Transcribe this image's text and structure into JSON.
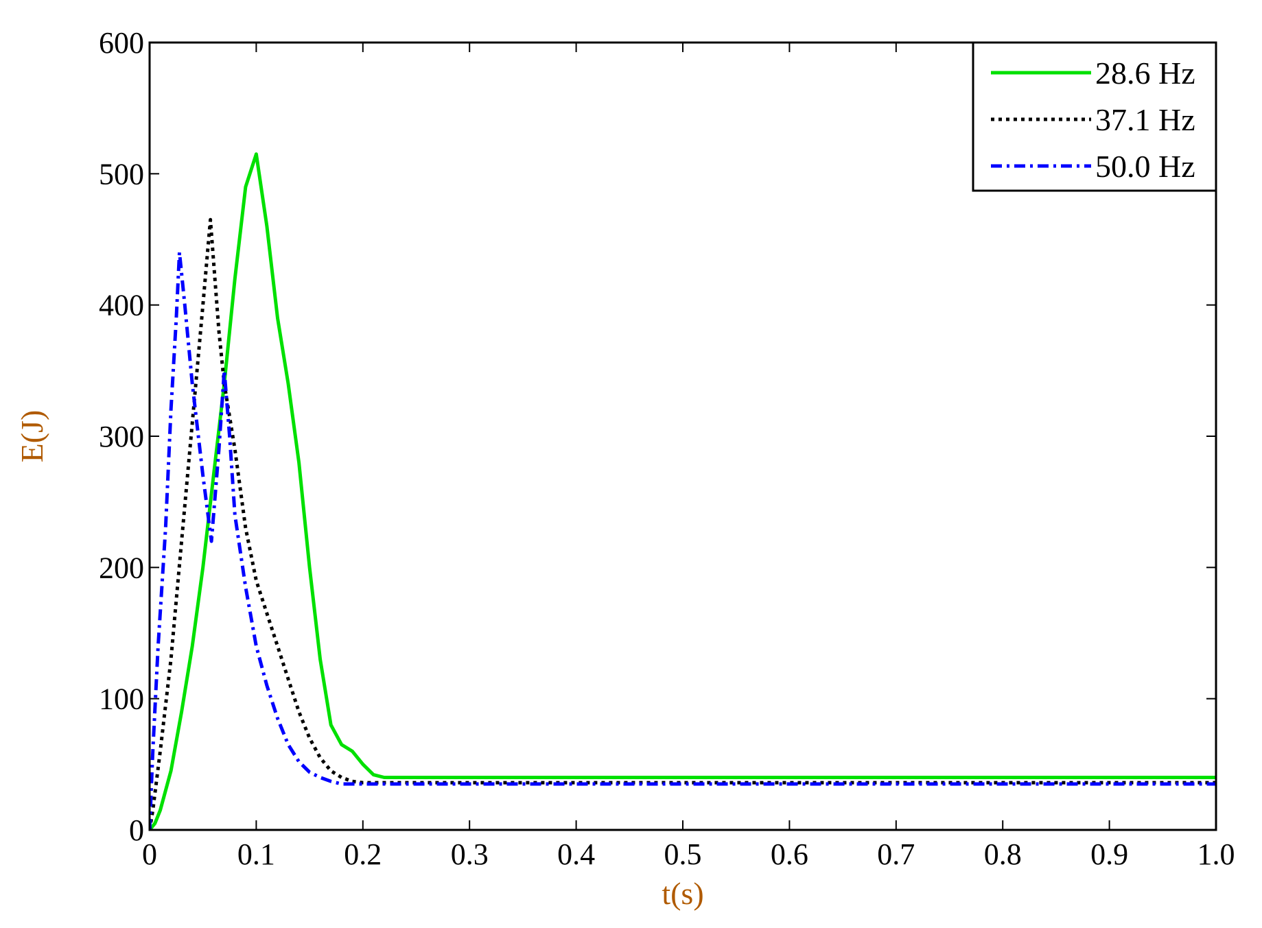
{
  "chart_data": {
    "type": "line",
    "title": "",
    "xlabel": "t(s)",
    "ylabel": "E(J)",
    "xlim": [
      0,
      1.0
    ],
    "ylim": [
      0,
      600
    ],
    "x_ticks": [
      0,
      0.1,
      0.2,
      0.3,
      0.4,
      0.5,
      0.6,
      0.7,
      0.8,
      0.9,
      1.0
    ],
    "x_tick_labels": [
      "0",
      "0.1",
      "0.2",
      "0.3",
      "0.4",
      "0.5",
      "0.6",
      "0.7",
      "0.8",
      "0.9",
      "1.0"
    ],
    "y_ticks": [
      0,
      100,
      200,
      300,
      400,
      500,
      600
    ],
    "y_tick_labels": [
      "0",
      "100",
      "200",
      "300",
      "400",
      "500",
      "600"
    ],
    "grid": false,
    "legend_position": "top-right",
    "label_color": "#b05a00",
    "series": [
      {
        "name": "28.6 Hz",
        "color": "#00e000",
        "style": "solid",
        "points": [
          [
            0,
            0
          ],
          [
            0.005,
            5
          ],
          [
            0.01,
            15
          ],
          [
            0.02,
            45
          ],
          [
            0.03,
            90
          ],
          [
            0.04,
            140
          ],
          [
            0.05,
            200
          ],
          [
            0.06,
            270
          ],
          [
            0.07,
            340
          ],
          [
            0.08,
            420
          ],
          [
            0.09,
            490
          ],
          [
            0.1,
            515
          ],
          [
            0.11,
            460
          ],
          [
            0.12,
            390
          ],
          [
            0.13,
            340
          ],
          [
            0.14,
            280
          ],
          [
            0.15,
            200
          ],
          [
            0.16,
            130
          ],
          [
            0.17,
            80
          ],
          [
            0.18,
            65
          ],
          [
            0.19,
            60
          ],
          [
            0.2,
            50
          ],
          [
            0.21,
            42
          ],
          [
            0.22,
            40
          ],
          [
            0.3,
            40
          ],
          [
            0.5,
            40
          ],
          [
            0.7,
            40
          ],
          [
            0.9,
            40
          ],
          [
            1.0,
            40
          ]
        ]
      },
      {
        "name": "37.1 Hz",
        "color": "#000000",
        "style": "dotted",
        "points": [
          [
            0,
            0
          ],
          [
            0.003,
            15
          ],
          [
            0.01,
            60
          ],
          [
            0.02,
            130
          ],
          [
            0.03,
            220
          ],
          [
            0.04,
            310
          ],
          [
            0.05,
            400
          ],
          [
            0.057,
            465
          ],
          [
            0.065,
            380
          ],
          [
            0.07,
            340
          ],
          [
            0.08,
            290
          ],
          [
            0.09,
            230
          ],
          [
            0.1,
            190
          ],
          [
            0.11,
            165
          ],
          [
            0.12,
            140
          ],
          [
            0.13,
            115
          ],
          [
            0.14,
            90
          ],
          [
            0.15,
            70
          ],
          [
            0.16,
            55
          ],
          [
            0.17,
            45
          ],
          [
            0.18,
            40
          ],
          [
            0.19,
            37
          ],
          [
            0.2,
            36
          ],
          [
            0.3,
            36
          ],
          [
            0.5,
            36
          ],
          [
            0.7,
            36
          ],
          [
            0.9,
            36
          ],
          [
            1.0,
            36
          ]
        ]
      },
      {
        "name": "50.0 Hz",
        "color": "#0000ff",
        "style": "dashdot",
        "points": [
          [
            0,
            0
          ],
          [
            0.003,
            60
          ],
          [
            0.008,
            140
          ],
          [
            0.015,
            230
          ],
          [
            0.02,
            320
          ],
          [
            0.025,
            390
          ],
          [
            0.028,
            440
          ],
          [
            0.033,
            400
          ],
          [
            0.04,
            340
          ],
          [
            0.05,
            270
          ],
          [
            0.058,
            220
          ],
          [
            0.065,
            290
          ],
          [
            0.07,
            350
          ],
          [
            0.075,
            300
          ],
          [
            0.08,
            240
          ],
          [
            0.09,
            185
          ],
          [
            0.1,
            140
          ],
          [
            0.11,
            110
          ],
          [
            0.12,
            85
          ],
          [
            0.13,
            65
          ],
          [
            0.14,
            52
          ],
          [
            0.15,
            44
          ],
          [
            0.16,
            40
          ],
          [
            0.17,
            37
          ],
          [
            0.18,
            35
          ],
          [
            0.3,
            35
          ],
          [
            0.5,
            35
          ],
          [
            0.7,
            35
          ],
          [
            0.9,
            35
          ],
          [
            1.0,
            35
          ]
        ]
      }
    ]
  }
}
